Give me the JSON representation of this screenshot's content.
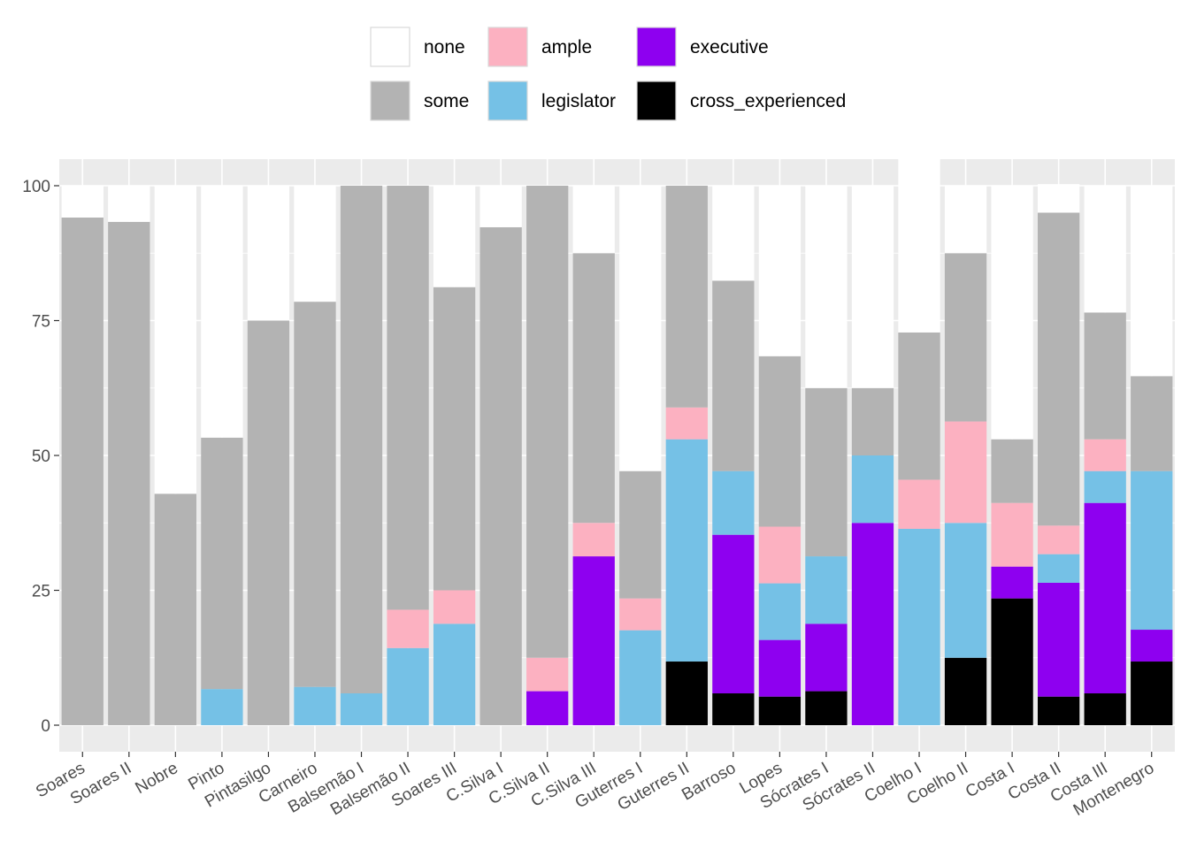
{
  "chart_data": {
    "type": "bar",
    "stacked": true,
    "categories": [
      "Soares",
      "Soares II",
      "Nobre",
      "Pinto",
      "Pintasilgo",
      "Carneiro",
      "Balsemão I",
      "Balsemão II",
      "Soares III",
      "C.Silva I",
      "C.Silva II",
      "C.Silva III",
      "Guterres I",
      "Guterres II",
      "Barroso",
      "Lopes",
      "Sócrates I",
      "Sócrates II",
      "Coelho I",
      "Coelho II",
      "Costa I",
      "Costa II",
      "Costa III",
      "Montenegro"
    ],
    "series": [
      {
        "name": "cross_experienced",
        "color": "#000000",
        "values": [
          0,
          0,
          0,
          0,
          0,
          0,
          0,
          0,
          0,
          0,
          0,
          0,
          0,
          11.8,
          5.9,
          5.3,
          6.3,
          0,
          0,
          12.5,
          23.5,
          5.3,
          5.9,
          11.8
        ]
      },
      {
        "name": "executive",
        "color": "#8E00F0",
        "values": [
          0,
          0,
          0,
          0,
          0,
          0,
          0,
          0,
          0,
          0,
          6.3,
          31.3,
          0,
          0,
          29.4,
          10.5,
          12.5,
          37.5,
          0,
          0,
          5.9,
          21.1,
          35.3,
          5.9
        ]
      },
      {
        "name": "legislator",
        "color": "#75C1E6",
        "values": [
          0,
          0,
          0,
          6.7,
          0,
          7.1,
          5.9,
          14.3,
          18.8,
          0,
          0,
          0,
          17.6,
          41.2,
          11.8,
          10.5,
          12.5,
          12.5,
          36.4,
          25.0,
          0,
          5.3,
          5.9,
          29.4
        ]
      },
      {
        "name": "ample",
        "color": "#FCB1C1",
        "values": [
          0,
          0,
          0,
          0,
          0,
          0,
          0,
          7.1,
          6.2,
          0,
          6.2,
          6.2,
          5.9,
          5.9,
          0,
          10.5,
          0,
          0,
          9.1,
          18.8,
          11.8,
          5.3,
          5.9,
          0
        ]
      },
      {
        "name": "some",
        "color": "#B3B3B3",
        "values": [
          94.1,
          93.3,
          42.9,
          46.6,
          75.0,
          71.4,
          94.1,
          78.6,
          56.2,
          92.3,
          87.5,
          50.0,
          23.6,
          41.1,
          35.3,
          31.6,
          31.2,
          12.5,
          27.3,
          31.2,
          11.8,
          58.0,
          23.5,
          17.6
        ]
      },
      {
        "name": "none",
        "color": "#FFFFFF",
        "values": [
          5.9,
          6.7,
          57.1,
          46.7,
          25.0,
          21.5,
          0,
          0,
          18.8,
          7.7,
          0,
          12.5,
          52.9,
          0,
          17.6,
          31.6,
          37.5,
          37.5,
          36.4,
          12.5,
          47.0,
          5.3,
          23.5,
          35.3
        ]
      }
    ],
    "legend_order": [
      "none",
      "ample",
      "executive",
      "some",
      "legislator",
      "cross_experienced"
    ],
    "y_ticks": [
      "0",
      "25",
      "50",
      "75",
      "100"
    ],
    "ylim": [
      -5,
      100
    ],
    "grid": true,
    "legend_position": "top"
  }
}
